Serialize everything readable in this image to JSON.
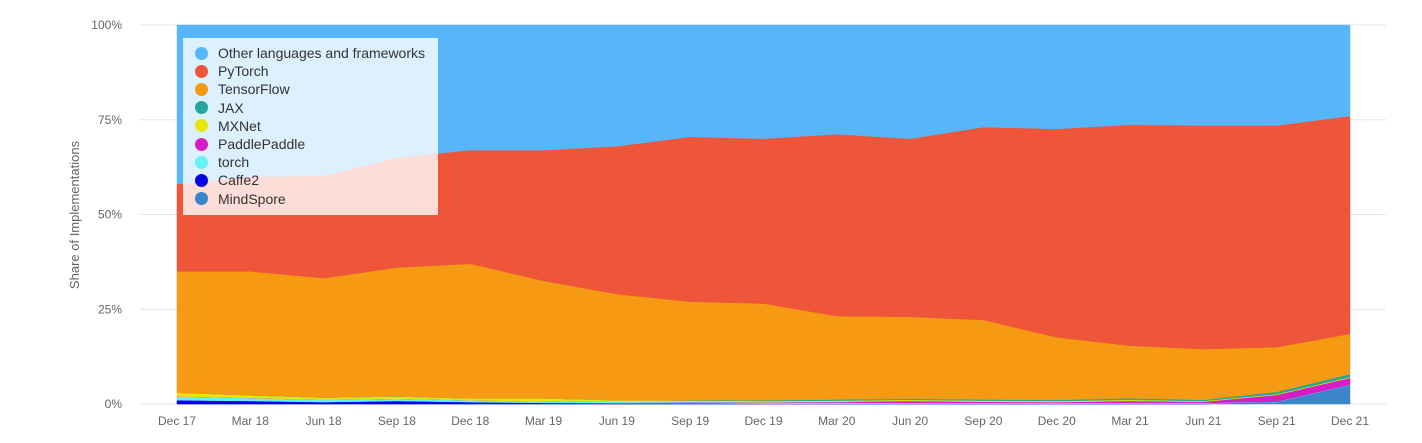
{
  "chart_data": {
    "type": "area",
    "stacked": true,
    "normalized": true,
    "ylabel": "Share of Implementations",
    "yticks": [
      "0%",
      "25%",
      "50%",
      "75%",
      "100%"
    ],
    "ylim": [
      0,
      100
    ],
    "x": [
      "Dec 17",
      "Mar 18",
      "Jun 18",
      "Sep 18",
      "Dec 18",
      "Mar 19",
      "Jun 19",
      "Sep 19",
      "Dec 19",
      "Mar 20",
      "Jun 20",
      "Sep 20",
      "Dec 20",
      "Mar 21",
      "Jun 21",
      "Sep 21",
      "Dec 21"
    ],
    "legend_position": "top-left",
    "grid": true,
    "series": [
      {
        "name": "MindSpore",
        "color": "#3a86c8",
        "values": [
          0,
          0,
          0,
          0,
          0,
          0,
          0,
          0,
          0,
          0,
          0,
          0,
          0,
          0,
          0,
          0.5,
          5
        ]
      },
      {
        "name": "Caffe2",
        "color": "#0a00e8",
        "values": [
          1,
          0.8,
          0.5,
          0.8,
          0.5,
          0.3,
          0.2,
          0.2,
          0.1,
          0.1,
          0.1,
          0.1,
          0.1,
          0.1,
          0.1,
          0,
          0
        ]
      },
      {
        "name": "torch",
        "color": "#66f2f2",
        "values": [
          1,
          0.8,
          0.6,
          0.6,
          0.5,
          0.4,
          0.4,
          0.3,
          0.3,
          0.3,
          0.2,
          0.2,
          0.2,
          0.2,
          0.2,
          0.1,
          0.1
        ]
      },
      {
        "name": "PaddlePaddle",
        "color": "#d61cc4",
        "values": [
          0,
          0,
          0,
          0,
          0,
          0,
          0,
          0.1,
          0.1,
          0.2,
          0.5,
          0.3,
          0.2,
          0.5,
          0.3,
          1.8,
          1.8
        ]
      },
      {
        "name": "MXNet",
        "color": "#e6e60a",
        "values": [
          1,
          0.7,
          0.6,
          0.6,
          0.5,
          0.8,
          0.4,
          0.3,
          0.3,
          0.3,
          0.3,
          0.3,
          0.3,
          0.3,
          0.2,
          0.2,
          0.2
        ]
      },
      {
        "name": "JAX",
        "color": "#26a69a",
        "values": [
          0,
          0,
          0,
          0,
          0,
          0,
          0,
          0.1,
          0.2,
          0.3,
          0.3,
          0.3,
          0.3,
          0.4,
          0.3,
          0.6,
          0.8
        ]
      },
      {
        "name": "TensorFlow",
        "color": "#f59a12",
        "values": [
          32,
          32.7,
          31.5,
          34,
          35.5,
          31,
          28,
          26,
          25.5,
          22,
          21.6,
          21,
          16.5,
          13.8,
          13.4,
          11.8,
          10.6
        ]
      },
      {
        "name": "PyTorch",
        "color": "#ee5539",
        "values": [
          23,
          25,
          27,
          29,
          30,
          34.5,
          39,
          43.5,
          43.5,
          48,
          47,
          51,
          55,
          58,
          59,
          58.5,
          57.5
        ]
      },
      {
        "name": "Other languages and frameworks",
        "color": "#56b6f9",
        "values": [
          42,
          40,
          39.8,
          35,
          33,
          33,
          32,
          29.5,
          30,
          28.8,
          30,
          27,
          27.4,
          26.2,
          26.5,
          26.5,
          24
        ]
      }
    ],
    "legend_order": [
      "Other languages and frameworks",
      "PyTorch",
      "TensorFlow",
      "JAX",
      "MXNet",
      "PaddlePaddle",
      "torch",
      "Caffe2",
      "MindSpore"
    ]
  }
}
